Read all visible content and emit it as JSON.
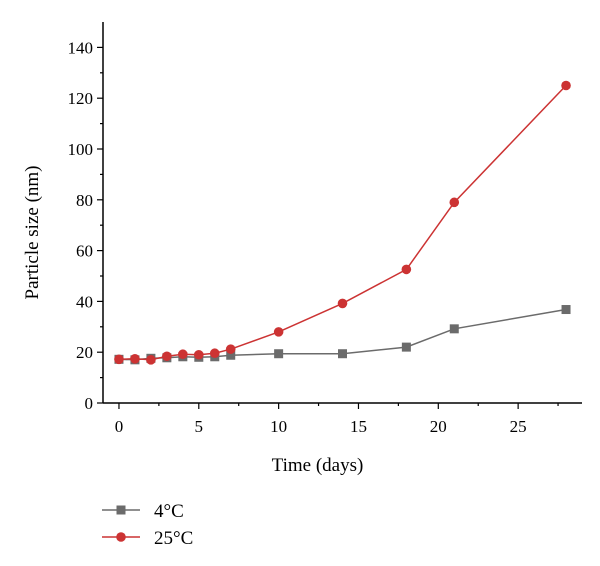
{
  "chart_data": {
    "type": "line",
    "xlabel": "Time (days)",
    "ylabel": "Particle size (nm)",
    "xlim": [
      -1,
      29
    ],
    "ylim": [
      0,
      150
    ],
    "xticks": [
      0,
      5,
      10,
      15,
      20,
      25
    ],
    "yticks": [
      0,
      20,
      40,
      60,
      80,
      100,
      120,
      140
    ],
    "grid": false,
    "legend_position": "bottom-left",
    "series": [
      {
        "name": "4°C",
        "color": "#6b6b6b",
        "marker": "square",
        "x": [
          0,
          1,
          2,
          3,
          4,
          5,
          6,
          7,
          10,
          14,
          18,
          21,
          28
        ],
        "y": [
          17.2,
          17.0,
          17.6,
          17.8,
          18.2,
          18.0,
          18.2,
          18.8,
          19.4,
          19.4,
          22.0,
          29.2,
          36.8
        ]
      },
      {
        "name": "25°C",
        "color": "#cc3333",
        "marker": "circle",
        "x": [
          0,
          1,
          2,
          3,
          4,
          5,
          6,
          7,
          10,
          14,
          18,
          21,
          28
        ],
        "y": [
          17.2,
          17.4,
          17.0,
          18.4,
          19.2,
          19.0,
          19.6,
          21.2,
          28.0,
          39.2,
          52.6,
          79.0,
          125.0
        ]
      }
    ]
  }
}
